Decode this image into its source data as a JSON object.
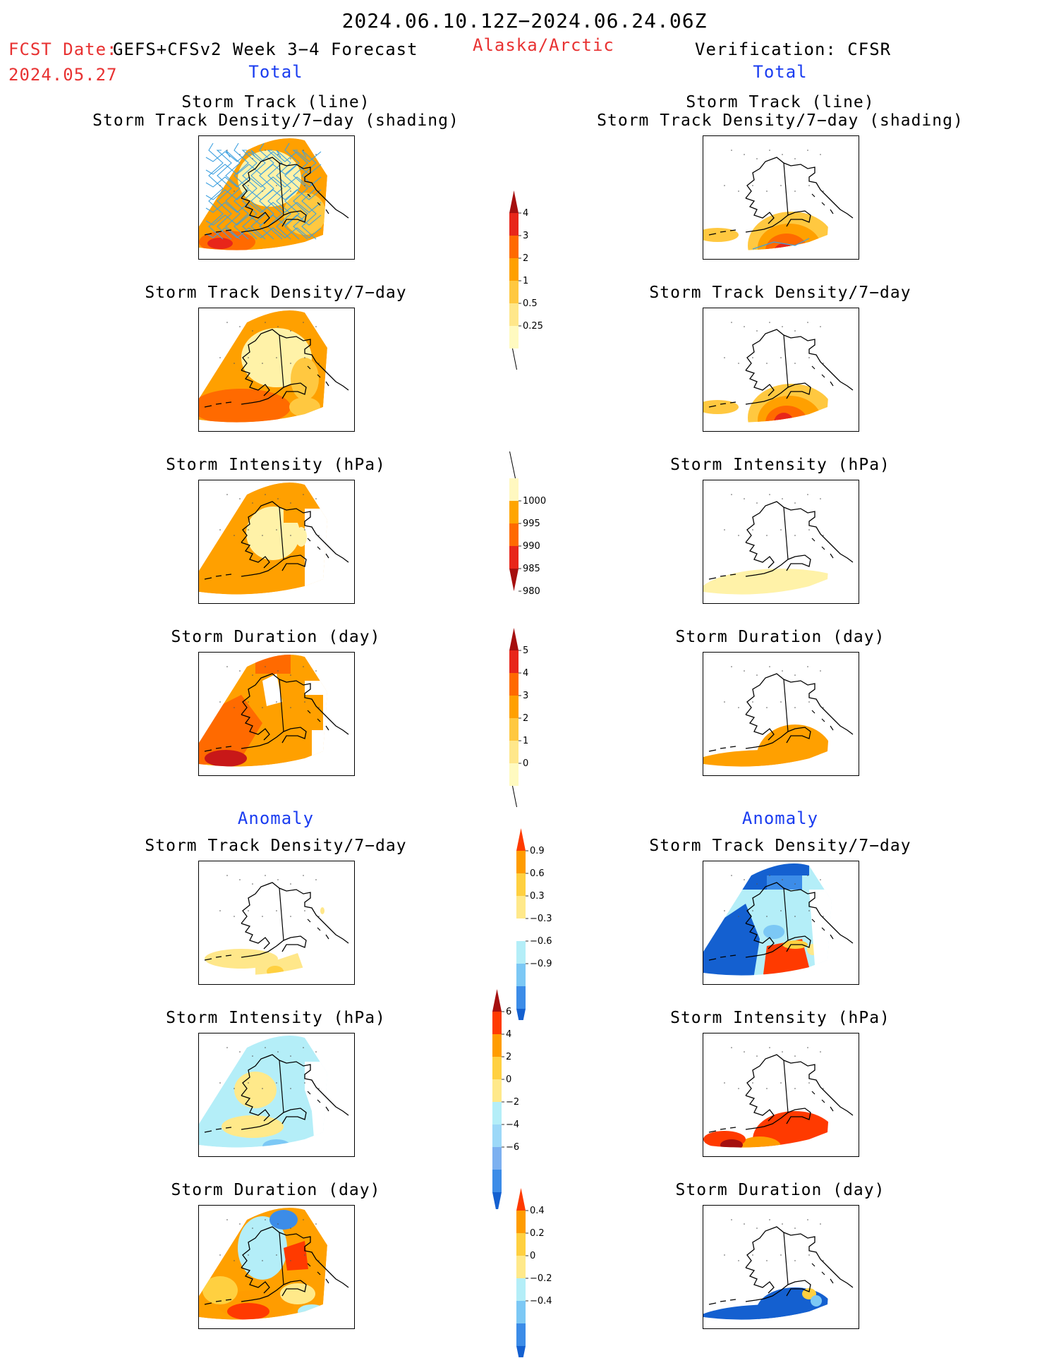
{
  "header": {
    "period": "2024.06.10.12Z−2024.06.24.06Z",
    "fcst_label": "FCST Date:",
    "fcst_model": "GEFS+CFSv2 Week 3−4 Forecast",
    "fcst_date": "2024.05.27",
    "region": "Alaska/Arctic",
    "verification": "Verification: CFSR",
    "total_left": "Total",
    "total_right": "Total",
    "anomaly_left": "Anomaly",
    "anomaly_right": "Anomaly"
  },
  "panel_titles": {
    "track_line": "Storm Track (line)",
    "track_shading": "Storm Track Density/7−day (shading)",
    "density": "Storm Track Density/7−day",
    "intensity": "Storm Intensity (hPa)",
    "duration": "Storm Duration (day)"
  },
  "colorbars": {
    "density": {
      "labels": [
        "4",
        "3",
        "2",
        "1",
        "0.5",
        "0.25"
      ],
      "colors": [
        "#a50f0f",
        "#e8261a",
        "#ff6a00",
        "#ffa000",
        "#ffc840",
        "#ffe78a",
        "#fffac0"
      ]
    },
    "intensity": {
      "labels": [
        "1000",
        "995",
        "990",
        "985",
        "980"
      ],
      "colors": [
        "#fff8c0",
        "#ffa500",
        "#ff6a00",
        "#e8261a",
        "#a50f0f"
      ]
    },
    "duration": {
      "labels": [
        "5",
        "4",
        "3",
        "2",
        "1",
        "0"
      ],
      "colors": [
        "#a50f0f",
        "#e8261a",
        "#ff6a00",
        "#ffa000",
        "#ffc840",
        "#ffe78a",
        "#fffac0"
      ]
    },
    "density_anom": {
      "labels": [
        "0.9",
        "0.6",
        "0.3",
        "−0.3",
        "−0.6",
        "−0.9"
      ],
      "colors": [
        "#ff3a00",
        "#ff9c00",
        "#ffd040",
        "#ffe98a",
        "#ffffff",
        "#b4eef8",
        "#7cc8f5",
        "#3c8ce8",
        "#1460d0"
      ]
    },
    "intensity_anom": {
      "labels": [
        "6",
        "4",
        "2",
        "0",
        "−2",
        "−4",
        "−6"
      ],
      "colors": [
        "#a50f0f",
        "#ff3a00",
        "#ff9c00",
        "#ffd040",
        "#ffe98a",
        "#b4eef8",
        "#9cd8f8",
        "#7cb0f0",
        "#3c8ce8",
        "#1460d0"
      ]
    },
    "duration_anom": {
      "labels": [
        "0.4",
        "0.2",
        "0",
        "−0.2",
        "−0.4"
      ],
      "colors": [
        "#ff3a00",
        "#ff9c00",
        "#ffd040",
        "#ffe98a",
        "#b4eef8",
        "#7cc8f5",
        "#3c8ce8",
        "#1460d0"
      ]
    }
  }
}
